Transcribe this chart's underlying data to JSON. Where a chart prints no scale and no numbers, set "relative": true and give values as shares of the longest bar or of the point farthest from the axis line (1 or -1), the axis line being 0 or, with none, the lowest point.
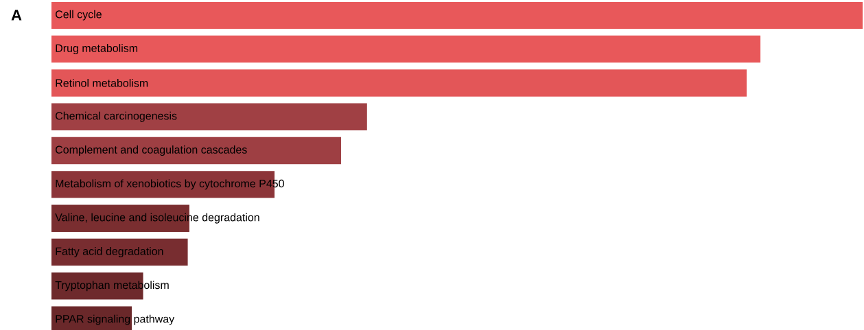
{
  "chart_data": {
    "type": "bar",
    "orientation": "horizontal",
    "relative": true,
    "categories": [
      "Cell cycle",
      "Drug metabolism",
      "Retinol metabolism",
      "Chemical carcinogenesis",
      "Complement and coagulation cascades",
      "Metabolism of xenobiotics by cytochrome P450",
      "Valine, leucine and isoleucine degradation",
      "Fatty acid degradation",
      "Tryptophan metabolism",
      "PPAR signaling pathway"
    ],
    "values": [
      1,
      0.874,
      0.857,
      0.389,
      0.357,
      0.275,
      0.17,
      0.168,
      0.113,
      0.099
    ],
    "colors": [
      "#e8585a",
      "#e8585a",
      "#e35658",
      "#a04044",
      "#9e3f43",
      "#8c3539",
      "#7a2e30",
      "#782d30",
      "#6e2a2c",
      "#6a282a"
    ],
    "annotations": [
      "A"
    ]
  }
}
